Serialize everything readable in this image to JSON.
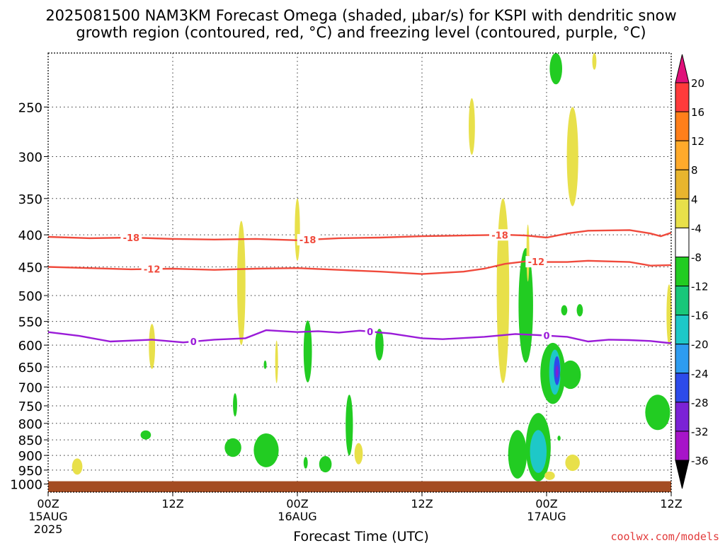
{
  "chart_data": {
    "type": "heatmap",
    "title": {
      "line1": "2025081500 NAM3KM Forecast Omega (shaded, μbar/s) for KSPI with dendritic snow",
      "line2": "growth region (contoured, red, °C) and freezing level (contoured, purple, °C)"
    },
    "xlabel": "Forecast Time (UTC)",
    "credit": "coolwx.com/models",
    "x_range_hours": [
      0,
      60
    ],
    "y_scale": "log",
    "y_range_hPa": [
      1030,
      205
    ],
    "x_ticks": [
      {
        "hour": 0,
        "label": "00Z",
        "sub": "15AUG",
        "sub2": "2025"
      },
      {
        "hour": 12,
        "label": "12Z",
        "sub": "",
        "sub2": ""
      },
      {
        "hour": 24,
        "label": "00Z",
        "sub": "16AUG",
        "sub2": ""
      },
      {
        "hour": 36,
        "label": "12Z",
        "sub": "",
        "sub2": ""
      },
      {
        "hour": 48,
        "label": "00Z",
        "sub": "17AUG",
        "sub2": ""
      },
      {
        "hour": 60,
        "label": "12Z",
        "sub": "",
        "sub2": ""
      }
    ],
    "y_ticks": [
      250,
      300,
      350,
      400,
      450,
      500,
      550,
      600,
      650,
      700,
      750,
      800,
      850,
      900,
      950,
      1000
    ],
    "grid": true,
    "ground_level_hPa": 1000,
    "colorbar": {
      "levels": [
        20,
        16,
        12,
        8,
        4,
        -4,
        -8,
        -12,
        -16,
        -20,
        -24,
        -28,
        -32,
        -36
      ],
      "colors": [
        "#ff3b3b",
        "#ff7f1a",
        "#ffaa2b",
        "#e8b52e",
        "#e8e04a",
        "#ffffff",
        "#22cc22",
        "#19c77a",
        "#1ec8c8",
        "#2e9cf0",
        "#2d4bea",
        "#7b22d6",
        "#a714c9",
        "#a8a8a8"
      ],
      "top_color": "#e0107a",
      "bottom_color": "#000000"
    },
    "contours": [
      {
        "name": "-18",
        "color": "#f04a3c",
        "label": "-18",
        "points": [
          [
            0,
            403
          ],
          [
            4,
            405
          ],
          [
            8,
            404
          ],
          [
            12,
            406
          ],
          [
            16,
            407
          ],
          [
            20,
            406
          ],
          [
            24,
            408
          ],
          [
            28,
            405
          ],
          [
            32,
            404
          ],
          [
            36,
            402
          ],
          [
            40,
            401
          ],
          [
            44,
            400
          ],
          [
            46,
            401
          ],
          [
            48,
            404
          ],
          [
            50,
            398
          ],
          [
            52,
            394
          ],
          [
            56,
            393
          ],
          [
            58,
            398
          ],
          [
            59,
            402
          ],
          [
            60,
            397
          ]
        ],
        "label_hours": [
          8,
          25,
          43.5
        ]
      },
      {
        "name": "-12",
        "color": "#f04a3c",
        "label": "-12",
        "points": [
          [
            0,
            450
          ],
          [
            4,
            452
          ],
          [
            8,
            454
          ],
          [
            12,
            453
          ],
          [
            16,
            455
          ],
          [
            20,
            453
          ],
          [
            24,
            452
          ],
          [
            28,
            455
          ],
          [
            32,
            458
          ],
          [
            36,
            462
          ],
          [
            40,
            458
          ],
          [
            42,
            453
          ],
          [
            44,
            445
          ],
          [
            46,
            441
          ],
          [
            48,
            442
          ],
          [
            50,
            442
          ],
          [
            52,
            440
          ],
          [
            56,
            442
          ],
          [
            58,
            448
          ],
          [
            60,
            447
          ]
        ],
        "label_hours": [
          10,
          47
        ]
      },
      {
        "name": "0",
        "color": "#9a1bd8",
        "label": "0",
        "points": [
          [
            0,
            572
          ],
          [
            3,
            580
          ],
          [
            6,
            592
          ],
          [
            10,
            588
          ],
          [
            13,
            594
          ],
          [
            16,
            588
          ],
          [
            19,
            585
          ],
          [
            21,
            568
          ],
          [
            24,
            572
          ],
          [
            26,
            570
          ],
          [
            28,
            573
          ],
          [
            30,
            569
          ],
          [
            33,
            575
          ],
          [
            36,
            585
          ],
          [
            38,
            587
          ],
          [
            42,
            582
          ],
          [
            45,
            576
          ],
          [
            47,
            578
          ],
          [
            50,
            582
          ],
          [
            52,
            592
          ],
          [
            54,
            588
          ],
          [
            56,
            589
          ],
          [
            58,
            591
          ],
          [
            60,
            596
          ]
        ],
        "label_hours": [
          14,
          31,
          48
        ]
      }
    ],
    "omega_regions": [
      {
        "hour": 2.8,
        "pressure": 938,
        "half_width_h": 0.5,
        "half_height": 28,
        "color": "#e8e04a"
      },
      {
        "hour": 10.0,
        "pressure": 605,
        "half_width_h": 0.3,
        "half_height": 50,
        "color": "#e8e04a"
      },
      {
        "hour": 9.4,
        "pressure": 835,
        "half_width_h": 0.5,
        "half_height": 14,
        "color": "#22cc22"
      },
      {
        "hour": 18.0,
        "pressure": 748,
        "half_width_h": 0.2,
        "half_height": 32,
        "color": "#22cc22"
      },
      {
        "hour": 18.6,
        "pressure": 490,
        "half_width_h": 0.4,
        "half_height": 110,
        "color": "#e8e04a"
      },
      {
        "hour": 17.8,
        "pressure": 875,
        "half_width_h": 0.8,
        "half_height": 30,
        "color": "#22cc22"
      },
      {
        "hour": 21.0,
        "pressure": 885,
        "half_width_h": 1.2,
        "half_height": 55,
        "color": "#22cc22"
      },
      {
        "hour": 24.0,
        "pressure": 395,
        "half_width_h": 0.25,
        "half_height": 45,
        "color": "#e8e04a"
      },
      {
        "hour": 22.0,
        "pressure": 640,
        "half_width_h": 0.05,
        "half_height": 50,
        "color": "#e8e04a"
      },
      {
        "hour": 25.0,
        "pressure": 618,
        "half_width_h": 0.4,
        "half_height": 70,
        "color": "#22cc22"
      },
      {
        "hour": 26.7,
        "pressure": 930,
        "half_width_h": 0.6,
        "half_height": 28,
        "color": "#22cc22"
      },
      {
        "hour": 29.0,
        "pressure": 810,
        "half_width_h": 0.35,
        "half_height": 90,
        "color": "#22cc22"
      },
      {
        "hour": 29.9,
        "pressure": 895,
        "half_width_h": 0.4,
        "half_height": 35,
        "color": "#e8e04a"
      },
      {
        "hour": 31.9,
        "pressure": 600,
        "half_width_h": 0.4,
        "half_height": 35,
        "color": "#22cc22"
      },
      {
        "hour": 20.9,
        "pressure": 645,
        "half_width_h": 0.1,
        "half_height": 10,
        "color": "#22cc22"
      },
      {
        "hour": 24.8,
        "pressure": 925,
        "half_width_h": 0.2,
        "half_height": 20,
        "color": "#22cc22"
      },
      {
        "hour": 40.8,
        "pressure": 270,
        "half_width_h": 0.3,
        "half_height": 28,
        "color": "#e8e04a"
      },
      {
        "hour": 43.8,
        "pressure": 520,
        "half_width_h": 0.6,
        "half_height": 170,
        "color": "#e8e04a"
      },
      {
        "hour": 46.0,
        "pressure": 530,
        "half_width_h": 0.7,
        "half_height": 110,
        "color": "#22cc22"
      },
      {
        "hour": 45.2,
        "pressure": 900,
        "half_width_h": 0.9,
        "half_height": 80,
        "color": "#22cc22"
      },
      {
        "hour": 47.2,
        "pressure": 880,
        "half_width_h": 1.2,
        "half_height": 110,
        "color": "#22cc22"
      },
      {
        "hour": 47.2,
        "pressure": 890,
        "half_width_h": 0.8,
        "half_height": 70,
        "color": "#1ec8c8"
      },
      {
        "hour": 46.2,
        "pressure": 430,
        "half_width_h": 0.1,
        "half_height": 45,
        "color": "#e8e04a"
      },
      {
        "hour": 48.6,
        "pressure": 670,
        "half_width_h": 1.2,
        "half_height": 75,
        "color": "#22cc22"
      },
      {
        "hour": 48.8,
        "pressure": 665,
        "half_width_h": 0.55,
        "half_height": 55,
        "color": "#1ec8c8"
      },
      {
        "hour": 49.0,
        "pressure": 660,
        "half_width_h": 0.3,
        "half_height": 35,
        "color": "#2d4bea"
      },
      {
        "hour": 49.0,
        "pressure": 662,
        "half_width_h": 0.1,
        "half_height": 15,
        "color": "#7b22d6"
      },
      {
        "hour": 50.3,
        "pressure": 670,
        "half_width_h": 1.0,
        "half_height": 35,
        "color": "#22cc22"
      },
      {
        "hour": 49.7,
        "pressure": 528,
        "half_width_h": 0.3,
        "half_height": 10,
        "color": "#22cc22"
      },
      {
        "hour": 51.2,
        "pressure": 528,
        "half_width_h": 0.3,
        "half_height": 12,
        "color": "#22cc22"
      },
      {
        "hour": 48.9,
        "pressure": 215,
        "half_width_h": 0.6,
        "half_height": 15,
        "color": "#22cc22"
      },
      {
        "hour": 52.6,
        "pressure": 210,
        "half_width_h": 0.2,
        "half_height": 8,
        "color": "#e8e04a"
      },
      {
        "hour": 50.5,
        "pressure": 305,
        "half_width_h": 0.55,
        "half_height": 55,
        "color": "#e8e04a"
      },
      {
        "hour": 50.5,
        "pressure": 925,
        "half_width_h": 0.7,
        "half_height": 28,
        "color": "#e8e04a"
      },
      {
        "hour": 48.3,
        "pressure": 970,
        "half_width_h": 0.5,
        "half_height": 15,
        "color": "#e8e04a"
      },
      {
        "hour": 49.2,
        "pressure": 845,
        "half_width_h": 0.15,
        "half_height": 8,
        "color": "#22cc22"
      },
      {
        "hour": 58.7,
        "pressure": 770,
        "half_width_h": 1.2,
        "half_height": 50,
        "color": "#22cc22"
      },
      {
        "hour": 59.8,
        "pressure": 540,
        "half_width_h": 0.25,
        "half_height": 60,
        "color": "#e8e04a"
      }
    ]
  }
}
